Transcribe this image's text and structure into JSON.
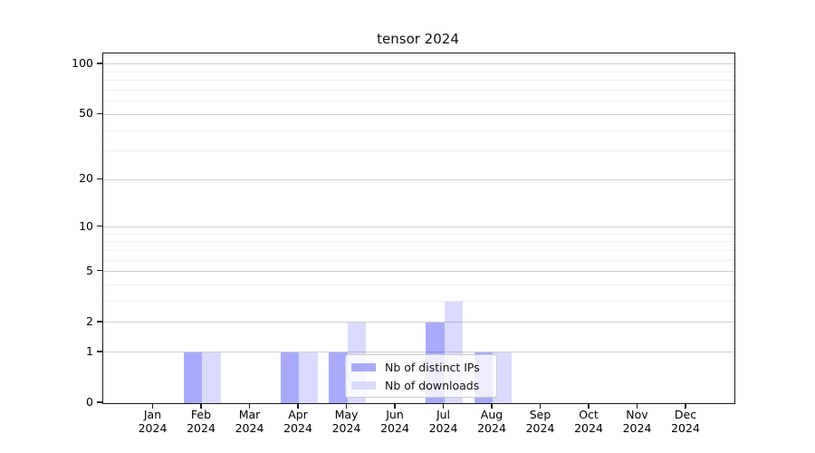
{
  "chart_data": {
    "type": "bar",
    "title": "tensor 2024",
    "categories": [
      "Jan 2024",
      "Feb 2024",
      "Mar 2024",
      "Apr 2024",
      "May 2024",
      "Jun 2024",
      "Jul 2024",
      "Aug 2024",
      "Sep 2024",
      "Oct 2024",
      "Nov 2024",
      "Dec 2024"
    ],
    "x_labels": [
      {
        "month": "Jan",
        "year": "2024"
      },
      {
        "month": "Feb",
        "year": "2024"
      },
      {
        "month": "Mar",
        "year": "2024"
      },
      {
        "month": "Apr",
        "year": "2024"
      },
      {
        "month": "May",
        "year": "2024"
      },
      {
        "month": "Jun",
        "year": "2024"
      },
      {
        "month": "Jul",
        "year": "2024"
      },
      {
        "month": "Aug",
        "year": "2024"
      },
      {
        "month": "Sep",
        "year": "2024"
      },
      {
        "month": "Oct",
        "year": "2024"
      },
      {
        "month": "Nov",
        "year": "2024"
      },
      {
        "month": "Dec",
        "year": "2024"
      }
    ],
    "series": [
      {
        "name": "Nb of distinct IPs",
        "color": "rgba(10,10,245,0.345)",
        "legend_color": "#a9a9f7",
        "values": [
          0,
          1,
          0,
          1,
          1,
          0,
          2,
          1,
          0,
          0,
          0,
          0
        ]
      },
      {
        "name": "Nb of downloads",
        "color": "rgba(10,10,245,0.15)",
        "legend_color": "#dadaf9",
        "values": [
          0,
          1,
          0,
          1,
          2,
          0,
          3,
          1,
          0,
          0,
          0,
          0
        ]
      }
    ],
    "y_scale": "log1p",
    "y_major_ticks": [
      0,
      1,
      2,
      5,
      10,
      20,
      50,
      100
    ],
    "y_minor_ticks": [
      3,
      4,
      6,
      7,
      8,
      9,
      30,
      40,
      60,
      70,
      80,
      90
    ],
    "ylim": [
      0,
      116
    ],
    "xlabel": "",
    "ylabel": "",
    "grid": "horizontal",
    "legend_position": "lower center-right inside plot"
  },
  "colors": {
    "grid_major": "#cfcfcf",
    "grid_minor": "#ededed",
    "spine": "#1a1a1a",
    "text": "#000000",
    "background": "#ffffff"
  }
}
